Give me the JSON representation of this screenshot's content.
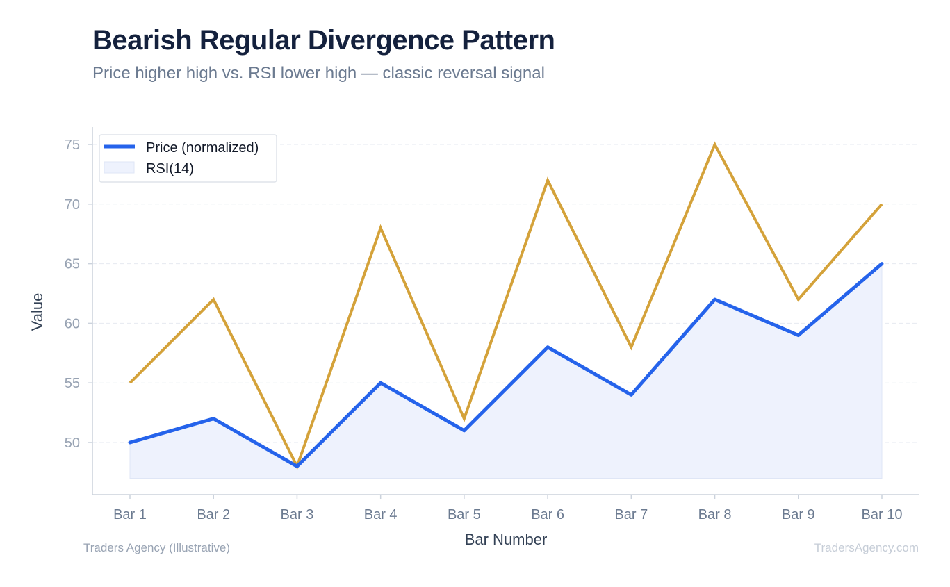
{
  "header": {
    "title": "Bearish Regular Divergence Pattern",
    "subtitle": "Price higher high vs. RSI lower high — classic reversal signal"
  },
  "footer": {
    "source": "Traders Agency (Illustrative)",
    "watermark": "TradersAgency.com"
  },
  "chart_data": {
    "type": "line",
    "title": "Bearish Regular Divergence Pattern",
    "subtitle": "Price higher high vs. RSI lower high — classic reversal signal",
    "xlabel": "Bar Number",
    "ylabel": "Value",
    "categories": [
      "Bar 1",
      "Bar 2",
      "Bar 3",
      "Bar 4",
      "Bar 5",
      "Bar 6",
      "Bar 7",
      "Bar 8",
      "Bar 9",
      "Bar 10"
    ],
    "yticks": [
      50,
      55,
      60,
      65,
      70,
      75
    ],
    "ylim": [
      45.5,
      76.5
    ],
    "area_baseline": 47,
    "grid": true,
    "legend_position": "top-left",
    "series": [
      {
        "name": "Price (normalized)",
        "style": "line-with-area-fill",
        "color": "#2563eb",
        "fill_color": "#eef2fd",
        "values": [
          50,
          52,
          48,
          55,
          51,
          58,
          54,
          62,
          59,
          65
        ]
      },
      {
        "name": "RSI(14)",
        "legend_swatch": "area",
        "style": "line",
        "color": "#d4a23a",
        "values": [
          55,
          62,
          48,
          68,
          52,
          72,
          58,
          75,
          62,
          70
        ]
      }
    ]
  }
}
